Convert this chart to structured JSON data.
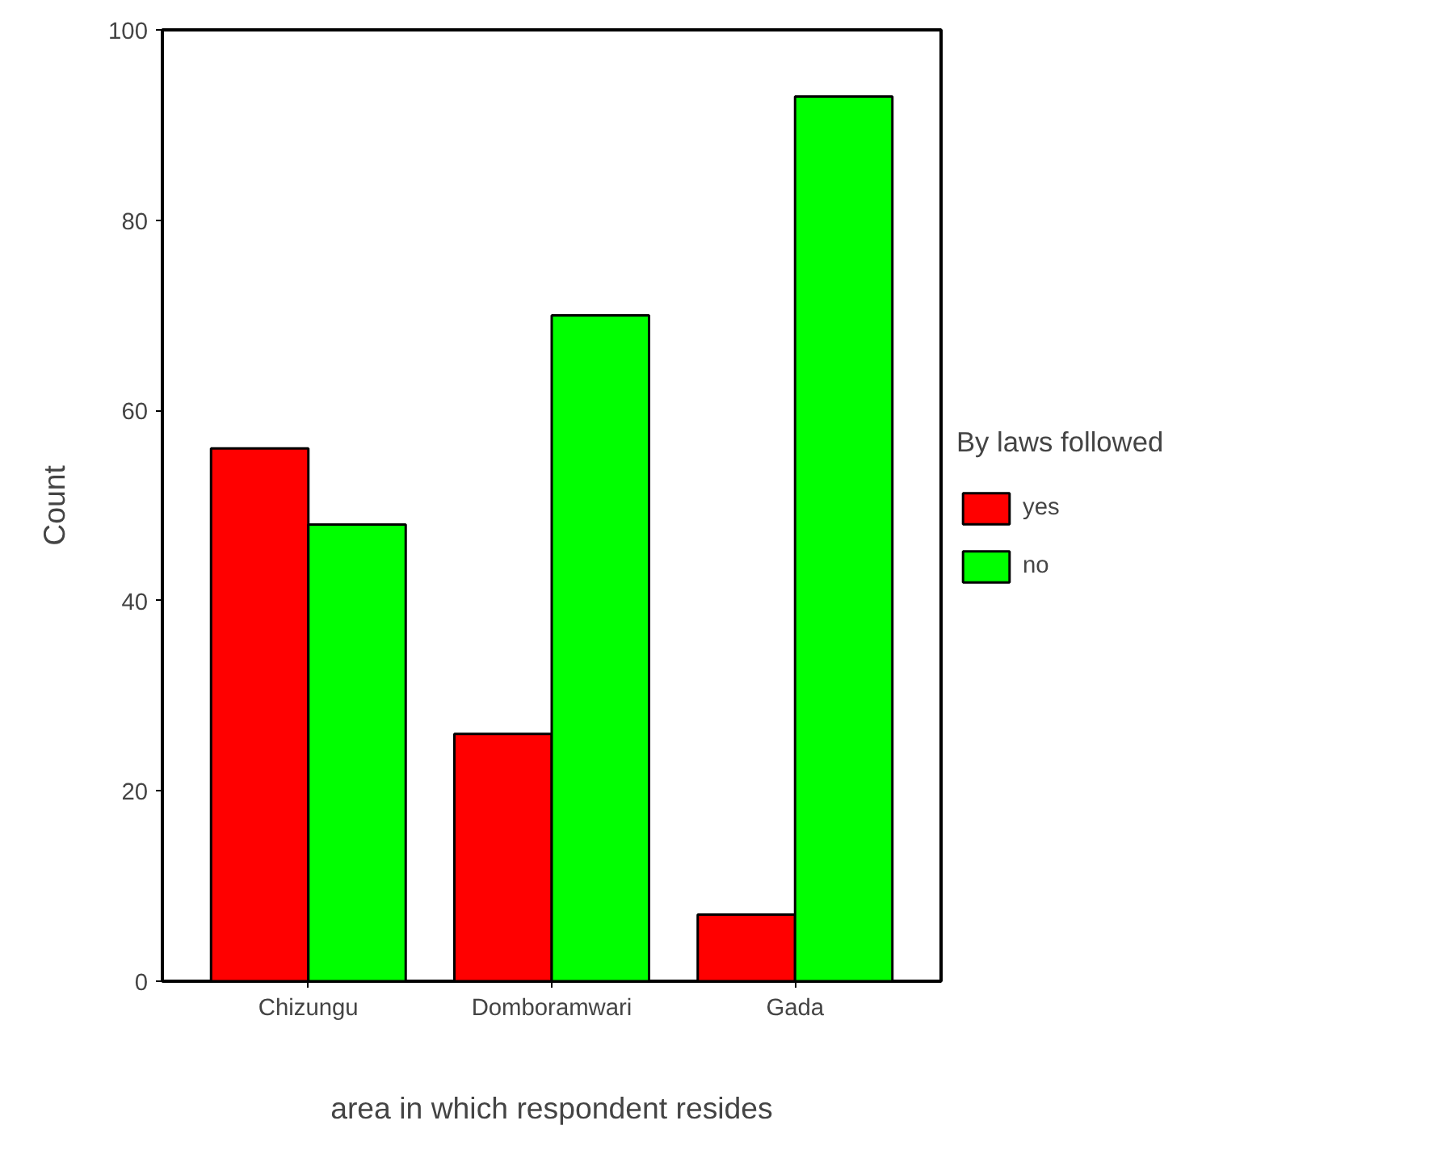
{
  "chart_data": {
    "type": "bar",
    "xlabel": "area in which respondent resides",
    "ylabel": "Count",
    "legend_title": "By laws followed",
    "categories": [
      "Chizungu",
      "Domboramwari",
      "Gada"
    ],
    "series": [
      {
        "name": "yes",
        "color": "#ff0000",
        "values": [
          56,
          26,
          7
        ]
      },
      {
        "name": "no",
        "color": "#00ff00",
        "values": [
          48,
          70,
          93
        ]
      }
    ],
    "ylim": [
      0,
      100
    ],
    "yticks": [
      0,
      20,
      40,
      60,
      80,
      100
    ],
    "grid": false,
    "legend": "right"
  }
}
